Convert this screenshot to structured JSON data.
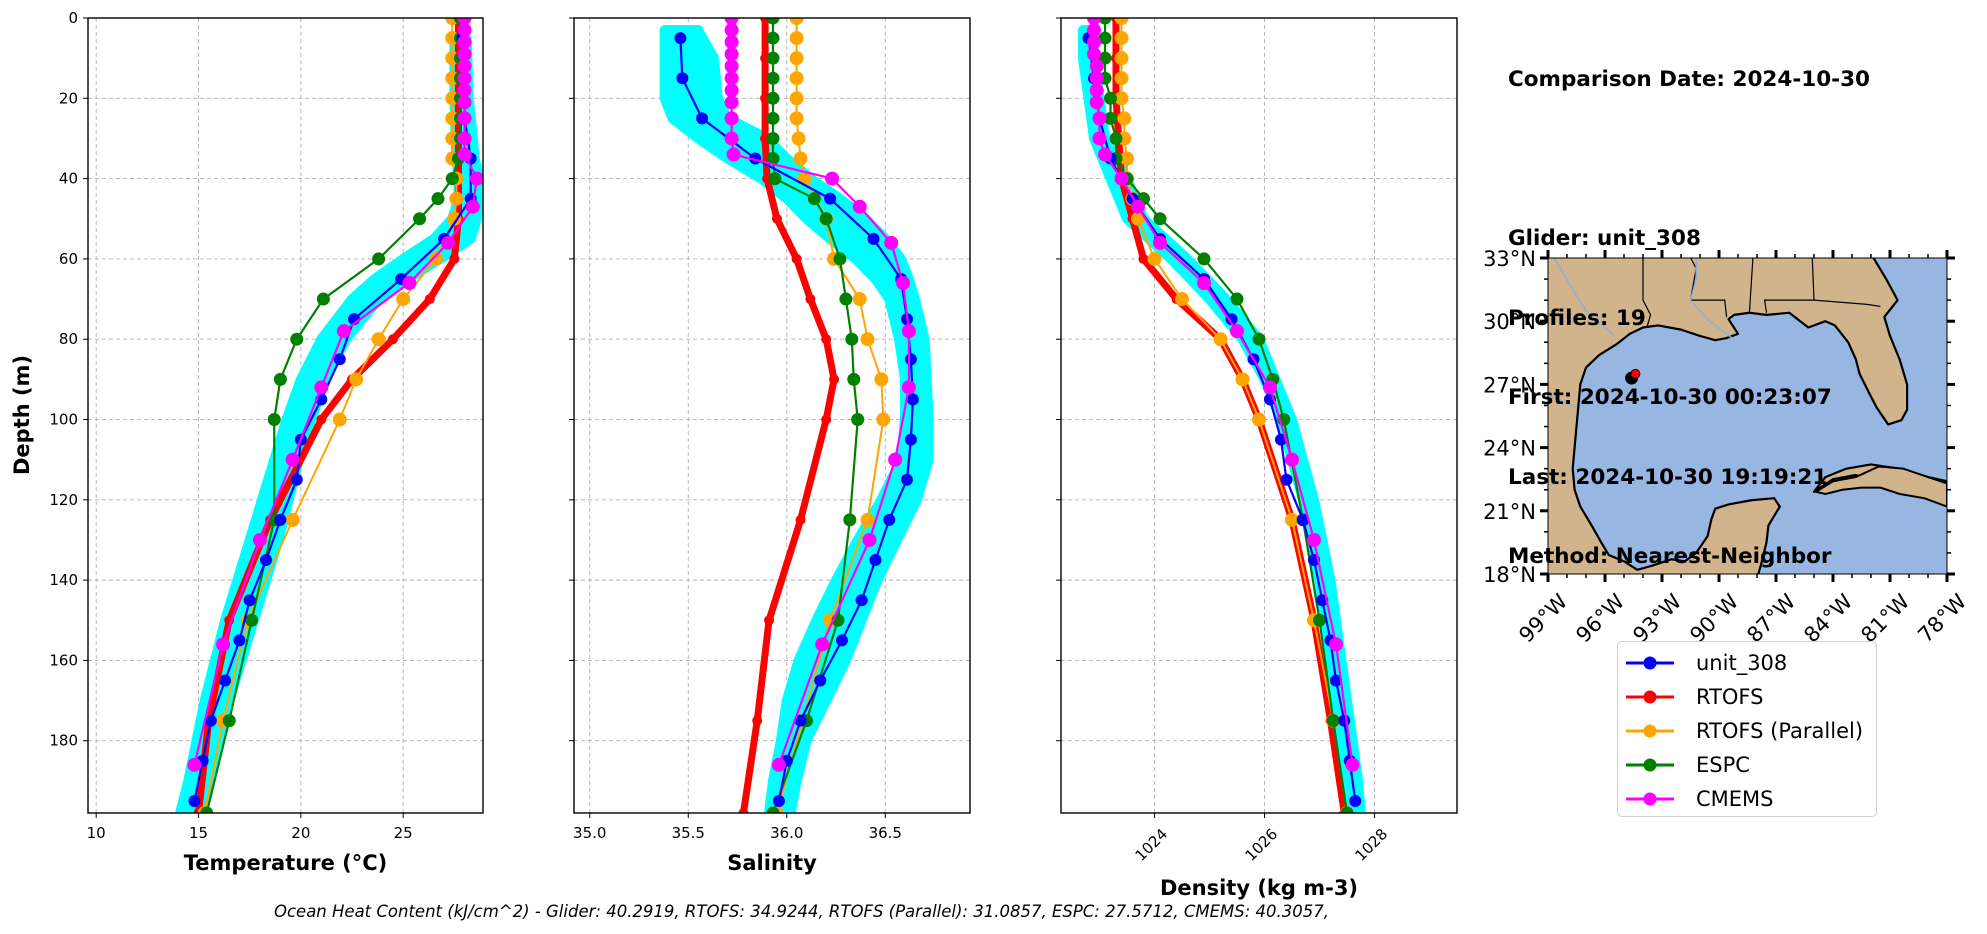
{
  "info_panel": {
    "comparison_date": "Comparison Date: 2024-10-30",
    "glider": "Glider: unit_308",
    "profiles": "Profiles: 19",
    "first": "First: 2024-10-30 00:23:07",
    "last": "Last: 2024-10-30 19:19:21",
    "method": "Method: Nearest-Neighbor"
  },
  "footer": "Ocean Heat Content (kJ/cm^2) - Glider: 40.2919,  RTOFS: 34.9244,  RTOFS (Parallel): 31.0857,  ESPC: 27.5712,  CMEMS: 40.3057,",
  "colors": {
    "unit_308": "#0000ff",
    "RTOFS": "#ff0000",
    "RTOFS (Parallel)": "#ffa500",
    "ESPC": "#008000",
    "CMEMS": "#ff00ff",
    "glider_profiles": "#00ffff",
    "land": "#d2b48c",
    "ocean": "#97b6e1",
    "grid": "#b0b0b0"
  },
  "legend": [
    {
      "label": "unit_308",
      "color": "#0000ff"
    },
    {
      "label": "RTOFS",
      "color": "#ff0000"
    },
    {
      "label": "RTOFS (Parallel)",
      "color": "#ffa500"
    },
    {
      "label": "ESPC",
      "color": "#008000"
    },
    {
      "label": "CMEMS",
      "color": "#ff00ff"
    }
  ],
  "chart_data": [
    {
      "type": "line",
      "title": "",
      "xlabel": "Temperature (°C)",
      "ylabel": "Depth (m)",
      "xlim": [
        9.6,
        28.9
      ],
      "ylim": [
        198,
        0
      ],
      "xticks": [
        10,
        15,
        20,
        25
      ],
      "yticks": [
        0,
        20,
        40,
        60,
        80,
        100,
        120,
        140,
        160,
        180
      ],
      "grid": true,
      "glider_envelope": {
        "name": "glider profiles",
        "depth": [
          5,
          20,
          35,
          40,
          45,
          50,
          55,
          60,
          65,
          70,
          80,
          90,
          100,
          110,
          120,
          130,
          140,
          150,
          160,
          170,
          180,
          190,
          198
        ],
        "min": [
          27.5,
          27.5,
          27.6,
          27.7,
          27.7,
          27.4,
          26.5,
          25.0,
          23.6,
          22.5,
          21.0,
          20.0,
          19.3,
          18.7,
          18.1,
          17.5,
          16.9,
          16.3,
          15.8,
          15.3,
          14.9,
          14.5,
          14.1
        ],
        "max": [
          28.1,
          28.2,
          28.5,
          28.7,
          28.7,
          28.6,
          28.3,
          26.8,
          25.2,
          23.8,
          22.2,
          21.2,
          20.5,
          19.9,
          19.4,
          18.9,
          18.3,
          17.7,
          17.1,
          16.5,
          16.0,
          15.5,
          15.1
        ]
      },
      "series": [
        {
          "name": "unit_308",
          "depth": [
            5,
            15,
            25,
            35,
            45,
            55,
            65,
            75,
            85,
            95,
            105,
            115,
            125,
            135,
            145,
            155,
            165,
            175,
            185,
            195
          ],
          "values": [
            27.9,
            28.0,
            28.0,
            28.3,
            28.3,
            27.0,
            24.9,
            22.6,
            21.9,
            21.0,
            20.0,
            19.8,
            19.0,
            18.3,
            17.5,
            17.0,
            16.3,
            15.6,
            15.2,
            14.8
          ]
        },
        {
          "name": "RTOFS",
          "depth": [
            0,
            10,
            20,
            30,
            40,
            50,
            60,
            70,
            80,
            90,
            100,
            125,
            150,
            175,
            198
          ],
          "values": [
            27.7,
            27.7,
            27.7,
            27.7,
            27.7,
            27.7,
            27.5,
            26.3,
            24.5,
            22.5,
            21.0,
            18.5,
            16.5,
            15.5,
            15.0
          ]
        },
        {
          "name": "RTOFS (Parallel)",
          "depth": [
            0,
            5,
            10,
            15,
            20,
            25,
            30,
            35,
            40,
            45,
            50,
            60,
            70,
            80,
            90,
            100,
            125,
            150,
            175,
            198
          ],
          "values": [
            27.4,
            27.4,
            27.4,
            27.4,
            27.4,
            27.4,
            27.4,
            27.4,
            27.6,
            27.6,
            27.5,
            26.6,
            25.0,
            23.8,
            22.7,
            21.9,
            19.6,
            17.4,
            16.2,
            15.3
          ]
        },
        {
          "name": "ESPC",
          "depth": [
            0,
            5,
            10,
            15,
            20,
            25,
            30,
            35,
            40,
            45,
            50,
            60,
            70,
            80,
            90,
            100,
            125,
            150,
            175,
            198
          ],
          "values": [
            27.8,
            27.8,
            27.8,
            27.8,
            27.8,
            27.8,
            27.8,
            27.7,
            27.4,
            26.7,
            25.8,
            23.8,
            21.1,
            19.8,
            19.0,
            18.7,
            18.7,
            17.6,
            16.5,
            15.4
          ]
        },
        {
          "name": "CMEMS",
          "depth": [
            0,
            3,
            6,
            9,
            12,
            15,
            18,
            21,
            25,
            30,
            34,
            40,
            47,
            56,
            66,
            78,
            92,
            110,
            130,
            156,
            186
          ],
          "values": [
            28.0,
            28.0,
            28.0,
            28.0,
            28.0,
            28.0,
            28.0,
            28.0,
            28.0,
            28.0,
            28.0,
            28.6,
            28.4,
            27.2,
            25.3,
            22.1,
            21.0,
            19.6,
            18.0,
            16.2,
            14.8
          ]
        }
      ]
    },
    {
      "type": "line",
      "title": "",
      "xlabel": "Salinity",
      "ylabel": "",
      "xlim": [
        34.92,
        36.93
      ],
      "ylim": [
        198,
        0
      ],
      "xticks": [
        35.0,
        35.5,
        36.0,
        36.5
      ],
      "yticks": [
        0,
        20,
        40,
        60,
        80,
        100,
        120,
        140,
        160,
        180
      ],
      "grid": true,
      "glider_envelope": {
        "name": "glider profiles",
        "depth": [
          3,
          10,
          15,
          20,
          25,
          30,
          35,
          40,
          45,
          50,
          55,
          60,
          65,
          70,
          80,
          90,
          100,
          110,
          120,
          130,
          140,
          150,
          160,
          170,
          180,
          190,
          198
        ],
        "min": [
          35.38,
          35.38,
          35.38,
          35.38,
          35.42,
          35.55,
          35.7,
          35.87,
          36.0,
          36.1,
          36.22,
          36.35,
          36.45,
          36.52,
          36.57,
          36.6,
          36.6,
          36.58,
          36.48,
          36.36,
          36.25,
          36.15,
          36.06,
          36.0,
          35.97,
          35.93,
          35.91
        ],
        "max": [
          35.55,
          35.63,
          35.64,
          35.65,
          35.7,
          35.9,
          36.0,
          36.12,
          36.27,
          36.4,
          36.5,
          36.58,
          36.62,
          36.65,
          36.7,
          36.71,
          36.72,
          36.72,
          36.66,
          36.56,
          36.46,
          36.38,
          36.3,
          36.2,
          36.1,
          36.05,
          36.02
        ]
      },
      "series": [
        {
          "name": "unit_308",
          "depth": [
            5,
            15,
            25,
            35,
            45,
            55,
            65,
            75,
            85,
            95,
            105,
            115,
            125,
            135,
            145,
            155,
            165,
            175,
            185,
            195
          ],
          "values": [
            35.46,
            35.47,
            35.57,
            35.84,
            36.22,
            36.44,
            36.58,
            36.61,
            36.63,
            36.64,
            36.63,
            36.61,
            36.52,
            36.45,
            36.38,
            36.28,
            36.17,
            36.07,
            36.0,
            35.96
          ]
        },
        {
          "name": "RTOFS",
          "depth": [
            0,
            10,
            20,
            30,
            40,
            50,
            60,
            70,
            80,
            90,
            100,
            125,
            150,
            175,
            198
          ],
          "values": [
            35.89,
            35.89,
            35.89,
            35.89,
            35.9,
            35.95,
            36.05,
            36.12,
            36.2,
            36.24,
            36.2,
            36.07,
            35.91,
            35.85,
            35.78
          ]
        },
        {
          "name": "RTOFS (Parallel)",
          "depth": [
            0,
            5,
            10,
            15,
            20,
            25,
            30,
            35,
            40,
            50,
            60,
            70,
            80,
            90,
            100,
            125,
            150,
            175,
            198
          ],
          "values": [
            36.05,
            36.05,
            36.05,
            36.05,
            36.05,
            36.05,
            36.06,
            36.07,
            36.09,
            36.2,
            36.24,
            36.37,
            36.41,
            36.48,
            36.49,
            36.41,
            36.22,
            36.08,
            35.95
          ]
        },
        {
          "name": "ESPC",
          "depth": [
            0,
            5,
            10,
            15,
            20,
            25,
            30,
            35,
            40,
            45,
            50,
            60,
            70,
            80,
            90,
            100,
            125,
            150,
            175,
            198
          ],
          "values": [
            35.93,
            35.93,
            35.93,
            35.93,
            35.93,
            35.93,
            35.93,
            35.93,
            35.94,
            36.14,
            36.2,
            36.27,
            36.3,
            36.33,
            36.34,
            36.36,
            36.32,
            36.26,
            36.1,
            35.93
          ]
        },
        {
          "name": "CMEMS",
          "depth": [
            0,
            3,
            6,
            9,
            12,
            15,
            18,
            21,
            25,
            30,
            34,
            40,
            47,
            56,
            66,
            78,
            92,
            110,
            130,
            156,
            186
          ],
          "values": [
            35.72,
            35.72,
            35.72,
            35.72,
            35.72,
            35.72,
            35.72,
            35.72,
            35.72,
            35.72,
            35.73,
            36.23,
            36.37,
            36.53,
            36.59,
            36.62,
            36.62,
            36.55,
            36.42,
            36.18,
            35.96
          ]
        }
      ]
    },
    {
      "type": "line",
      "title": "",
      "xlabel": "Density (kg m-3)",
      "ylabel": "",
      "xlim": [
        1022.3,
        1029.5
      ],
      "ylim": [
        198,
        0
      ],
      "xticks": [
        1024,
        1026,
        1028
      ],
      "yticks": [
        0,
        20,
        40,
        60,
        80,
        100,
        120,
        140,
        160,
        180
      ],
      "grid": true,
      "glider_envelope": {
        "name": "glider profiles",
        "depth": [
          3,
          10,
          20,
          30,
          40,
          50,
          60,
          70,
          80,
          90,
          100,
          110,
          120,
          130,
          140,
          150,
          160,
          170,
          180,
          190,
          198
        ],
        "min": [
          1022.7,
          1022.7,
          1022.8,
          1022.9,
          1023.2,
          1023.5,
          1024.3,
          1025.0,
          1025.6,
          1026.0,
          1026.3,
          1026.5,
          1026.7,
          1026.85,
          1027.0,
          1027.1,
          1027.2,
          1027.3,
          1027.4,
          1027.5,
          1027.55
        ],
        "max": [
          1022.9,
          1022.9,
          1023.0,
          1023.1,
          1023.5,
          1023.8,
          1024.6,
          1025.3,
          1025.9,
          1026.2,
          1026.5,
          1026.7,
          1026.9,
          1027.05,
          1027.2,
          1027.3,
          1027.4,
          1027.5,
          1027.6,
          1027.7,
          1027.75
        ]
      },
      "series": [
        {
          "name": "unit_308",
          "depth": [
            5,
            15,
            25,
            35,
            45,
            55,
            65,
            75,
            85,
            95,
            105,
            115,
            125,
            135,
            145,
            155,
            165,
            175,
            185,
            195
          ],
          "values": [
            1022.8,
            1022.9,
            1023.0,
            1023.2,
            1023.6,
            1024.1,
            1024.9,
            1025.4,
            1025.8,
            1026.1,
            1026.3,
            1026.4,
            1026.7,
            1026.9,
            1027.05,
            1027.2,
            1027.3,
            1027.45,
            1027.55,
            1027.65
          ]
        },
        {
          "name": "RTOFS",
          "depth": [
            0,
            10,
            20,
            30,
            40,
            50,
            60,
            70,
            80,
            90,
            100,
            125,
            150,
            175,
            198
          ],
          "values": [
            1023.3,
            1023.3,
            1023.3,
            1023.35,
            1023.4,
            1023.6,
            1023.8,
            1024.4,
            1025.2,
            1025.6,
            1025.9,
            1026.5,
            1026.9,
            1027.2,
            1027.45
          ]
        },
        {
          "name": "RTOFS (Parallel)",
          "depth": [
            0,
            5,
            10,
            15,
            20,
            25,
            30,
            35,
            40,
            45,
            50,
            60,
            70,
            80,
            90,
            100,
            125,
            150,
            175,
            198
          ],
          "values": [
            1023.4,
            1023.4,
            1023.4,
            1023.4,
            1023.4,
            1023.45,
            1023.45,
            1023.5,
            1023.5,
            1023.6,
            1023.7,
            1024.0,
            1024.5,
            1025.2,
            1025.6,
            1025.9,
            1026.5,
            1026.9,
            1027.25,
            1027.5
          ]
        },
        {
          "name": "ESPC",
          "depth": [
            0,
            5,
            10,
            15,
            20,
            25,
            30,
            35,
            40,
            45,
            50,
            60,
            70,
            80,
            90,
            100,
            125,
            150,
            175,
            198
          ],
          "values": [
            1023.1,
            1023.1,
            1023.1,
            1023.1,
            1023.2,
            1023.2,
            1023.3,
            1023.3,
            1023.5,
            1023.8,
            1024.1,
            1024.9,
            1025.5,
            1025.9,
            1026.15,
            1026.35,
            1026.7,
            1027.0,
            1027.25,
            1027.5
          ]
        },
        {
          "name": "CMEMS",
          "depth": [
            0,
            3,
            6,
            9,
            12,
            15,
            18,
            21,
            25,
            30,
            34,
            40,
            47,
            56,
            66,
            78,
            92,
            110,
            130,
            156,
            186
          ],
          "values": [
            1022.9,
            1022.9,
            1022.9,
            1022.9,
            1022.95,
            1022.95,
            1022.95,
            1022.95,
            1023.0,
            1023.0,
            1023.1,
            1023.4,
            1023.7,
            1024.1,
            1024.9,
            1025.5,
            1026.1,
            1026.5,
            1026.9,
            1027.3,
            1027.6
          ]
        }
      ]
    },
    {
      "type": "map",
      "title": "",
      "lon_range": [
        -99,
        -78
      ],
      "lat_range": [
        18,
        33
      ],
      "xticks": [
        "99°W",
        "96°W",
        "93°W",
        "90°W",
        "87°W",
        "84°W",
        "81°W",
        "78°W"
      ],
      "yticks": [
        "33°N",
        "30°N",
        "27°N",
        "24°N",
        "21°N",
        "18°N"
      ],
      "markers": [
        {
          "name": "glider track",
          "lon": -94.6,
          "lat": 27.3,
          "color": "#000000"
        },
        {
          "name": "glider position",
          "lon": -94.4,
          "lat": 27.5,
          "color": "#ff0000"
        }
      ]
    }
  ]
}
